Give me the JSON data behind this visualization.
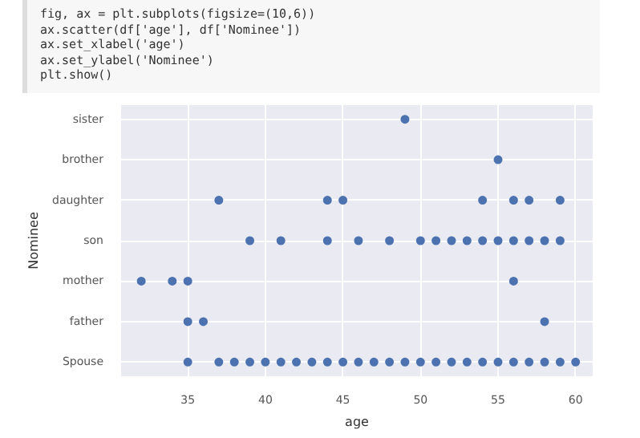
{
  "chart_data": {
    "type": "scatter",
    "orientation": "horizontal",
    "xlabel": "age",
    "ylabel": "Nominee",
    "annotations": [
      "fig, ax = plt.subplots(figsize=(10,6))",
      "ax.scatter(df['age'], df['Nominee'])",
      "ax.set_xlabel('age')",
      "ax.set_ylabel('Nominee')",
      "plt.show()"
    ],
    "categories": [
      "sister",
      "brother",
      "daughter",
      "son",
      "mother",
      "father",
      "Spouse"
    ],
    "series": [
      {
        "color": "#4c72b0",
        "values": [
          49,
          55,
          37,
          39,
          32,
          35,
          35
        ]
      },
      {
        "color": "#4c72b0",
        "values": [
          null,
          null,
          44,
          41,
          34,
          36,
          37
        ]
      },
      {
        "color": "#4c72b0",
        "values": [
          null,
          null,
          45,
          44,
          35,
          58,
          38
        ]
      },
      {
        "color": "#4c72b0",
        "values": [
          null,
          null,
          54,
          46,
          56,
          null,
          39
        ]
      },
      {
        "color": "#4c72b0",
        "values": [
          null,
          null,
          56,
          48,
          null,
          null,
          40
        ]
      },
      {
        "color": "#4c72b0",
        "values": [
          null,
          null,
          57,
          50,
          null,
          null,
          41
        ]
      },
      {
        "color": "#4c72b0",
        "values": [
          null,
          null,
          59,
          51,
          null,
          null,
          42
        ]
      },
      {
        "color": "#4c72b0",
        "values": [
          null,
          null,
          null,
          52,
          null,
          null,
          43
        ]
      },
      {
        "color": "#4c72b0",
        "values": [
          null,
          null,
          null,
          53,
          null,
          null,
          44
        ]
      },
      {
        "color": "#4c72b0",
        "values": [
          null,
          null,
          null,
          54,
          null,
          null,
          45
        ]
      },
      {
        "color": "#4c72b0",
        "values": [
          null,
          null,
          null,
          55,
          null,
          null,
          46
        ]
      },
      {
        "color": "#4c72b0",
        "values": [
          null,
          null,
          null,
          56,
          null,
          null,
          47
        ]
      },
      {
        "color": "#4c72b0",
        "values": [
          null,
          null,
          null,
          57,
          null,
          null,
          48
        ]
      },
      {
        "color": "#4c72b0",
        "values": [
          null,
          null,
          null,
          58,
          null,
          null,
          49
        ]
      },
      {
        "color": "#4c72b0",
        "values": [
          null,
          null,
          null,
          59,
          null,
          null,
          50
        ]
      },
      {
        "color": "#4c72b0",
        "values": [
          null,
          null,
          null,
          null,
          null,
          null,
          51
        ]
      },
      {
        "color": "#4c72b0",
        "values": [
          null,
          null,
          null,
          null,
          null,
          null,
          52
        ]
      },
      {
        "color": "#4c72b0",
        "values": [
          null,
          null,
          null,
          null,
          null,
          null,
          53
        ]
      },
      {
        "color": "#4c72b0",
        "values": [
          null,
          null,
          null,
          null,
          null,
          null,
          54
        ]
      },
      {
        "color": "#4c72b0",
        "values": [
          null,
          null,
          null,
          null,
          null,
          null,
          55
        ]
      },
      {
        "color": "#4c72b0",
        "values": [
          null,
          null,
          null,
          null,
          null,
          null,
          56
        ]
      },
      {
        "color": "#4c72b0",
        "values": [
          null,
          null,
          null,
          null,
          null,
          null,
          57
        ]
      },
      {
        "color": "#4c72b0",
        "values": [
          null,
          null,
          null,
          null,
          null,
          null,
          58
        ]
      },
      {
        "color": "#4c72b0",
        "values": [
          null,
          null,
          null,
          null,
          null,
          null,
          59
        ]
      },
      {
        "color": "#4c72b0",
        "values": [
          null,
          null,
          null,
          null,
          null,
          null,
          60
        ]
      }
    ],
    "xlim": [
      30.7,
      61.1
    ],
    "xticks": [
      35,
      40,
      45,
      50,
      55,
      60
    ],
    "grid": true,
    "marker": "circle"
  }
}
